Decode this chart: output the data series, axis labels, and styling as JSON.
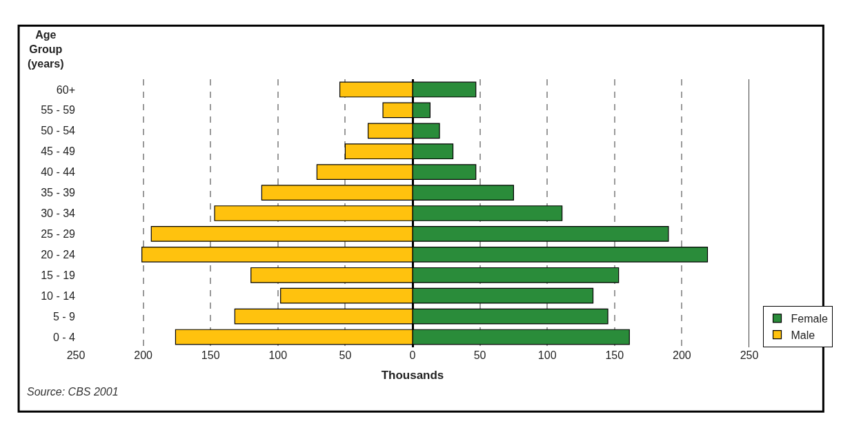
{
  "chart_data": {
    "type": "bar",
    "orientation": "horizontal",
    "stacked": true,
    "xlabel": "Thousands",
    "ylabel": "Age Group (years)",
    "categories": [
      "60+",
      "55 - 59",
      "50 - 54",
      "45 - 49",
      "40 - 44",
      "35 - 39",
      "30 - 34",
      "25 - 29",
      "20 - 24",
      "15 - 19",
      "10 - 14",
      "5 - 9",
      "0 - 4"
    ],
    "series": [
      {
        "name": "Female",
        "color": "#2a8c3a",
        "values": [
          47,
          13,
          20,
          30,
          47,
          75,
          111,
          190,
          219,
          153,
          134,
          145,
          161
        ]
      },
      {
        "name": "Male",
        "color": "#ffc20e",
        "values": [
          -54,
          -22,
          -33,
          -50,
          -71,
          -112,
          -147,
          -194,
          -201,
          -120,
          -98,
          -132,
          -176
        ]
      }
    ],
    "xlim": [
      -250,
      250
    ],
    "xticks": [
      {
        "value": -250,
        "label": "250"
      },
      {
        "value": -200,
        "label": "200"
      },
      {
        "value": -150,
        "label": "150"
      },
      {
        "value": -100,
        "label": "100"
      },
      {
        "value": -50,
        "label": "50"
      },
      0,
      50,
      100,
      150,
      200,
      250
    ],
    "grid": "x",
    "legend": "bottom right",
    "annotations": [
      "Source: CBS 2001"
    ]
  }
}
